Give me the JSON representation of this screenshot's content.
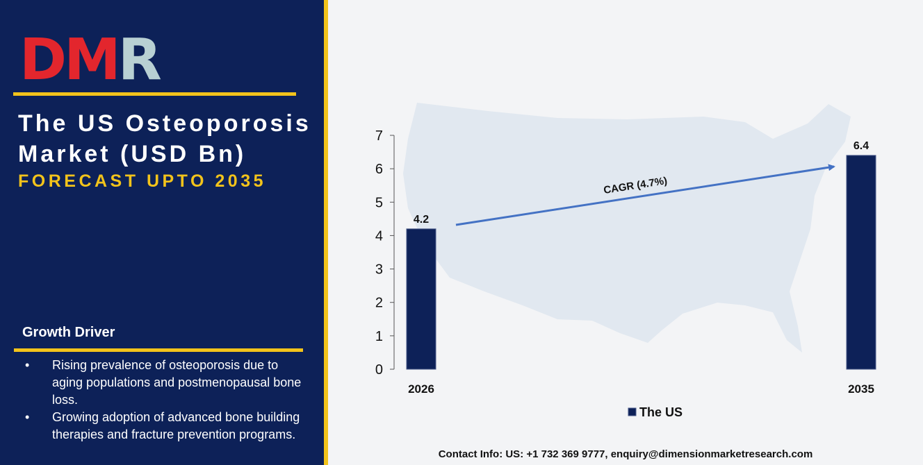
{
  "logo": {
    "text": "DMR",
    "colors": {
      "d": "#e3262d",
      "m": "#e3262d",
      "r": "#b8d0d3"
    }
  },
  "title": "The US Osteoporosis Market (USD Bn)",
  "subtitle": "FORECAST UPTO 2035",
  "growth_driver": {
    "heading": "Growth Driver",
    "bullet": "•",
    "items": [
      "Rising prevalence of osteoporosis due to aging populations and postmenopausal bone loss.",
      "Growing adoption of advanced bone building therapies and fracture prevention programs."
    ]
  },
  "chart_data": {
    "type": "bar",
    "categories": [
      "2026",
      "2035"
    ],
    "series": [
      {
        "name": "The US",
        "values": [
          4.2,
          6.4
        ]
      }
    ],
    "data_labels": [
      "4.2",
      "6.4"
    ],
    "ylim": [
      0,
      7
    ],
    "yticks": [
      0,
      1,
      2,
      3,
      4,
      5,
      6,
      7
    ],
    "annotation": "CAGR (4.7%)",
    "legend_position": "bottom",
    "grid": false,
    "colors": {
      "bar": "#0d2158",
      "arrow": "#4472c4",
      "map": "#dde5ee"
    }
  },
  "contact": "Contact Info: US: +1 732 369 9777, enquiry@dimensionmarketresearch.com",
  "colors": {
    "panel": "#0d2158",
    "accent": "#f2c31b",
    "background": "#f3f4f6"
  }
}
